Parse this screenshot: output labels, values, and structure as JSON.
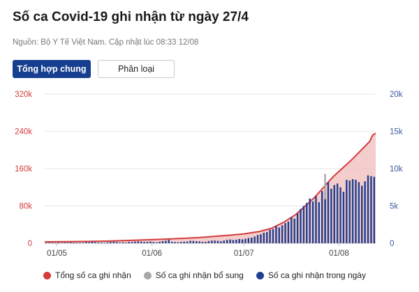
{
  "header": {
    "title": "Số ca Covid-19 ghi nhận từ ngày 27/4",
    "source": "Nguồn: Bộ Y Tế Việt Nam. Cập nhật lúc 08:33 12/08"
  },
  "tabs": [
    {
      "label": "Tổng hợp chung",
      "active": true
    },
    {
      "label": "Phân loại",
      "active": false
    }
  ],
  "colors": {
    "cumulative": "#d43b3b",
    "cumulative_fill": "#f2c4c4",
    "supplementary": "#a8a8a8",
    "daily": "#1f3f8f",
    "left_axis": "#d43b3b",
    "right_axis": "#3b5a9e"
  },
  "chart_data": {
    "type": "bar",
    "x_ticks": [
      "01/05",
      "01/06",
      "01/07",
      "01/08"
    ],
    "x_tick_days": [
      4,
      35,
      65,
      96
    ],
    "days": 108,
    "left_axis": {
      "ticks": [
        "0",
        "80k",
        "160k",
        "240k",
        "320k"
      ],
      "ylim": [
        0,
        320000
      ]
    },
    "right_axis": {
      "ticks": [
        "0",
        "5k",
        "10k",
        "15k",
        "20k"
      ],
      "ylim": [
        0,
        20000
      ]
    },
    "series": [
      {
        "name": "Tổng số ca ghi nhận",
        "kind": "area-line",
        "axis": "left",
        "points": [
          [
            0,
            2900
          ],
          [
            10,
            3500
          ],
          [
            20,
            4400
          ],
          [
            30,
            6500
          ],
          [
            40,
            9000
          ],
          [
            50,
            12000
          ],
          [
            60,
            17000
          ],
          [
            65,
            20000
          ],
          [
            70,
            25000
          ],
          [
            74,
            32000
          ],
          [
            78,
            45000
          ],
          [
            82,
            62000
          ],
          [
            85,
            80000
          ],
          [
            88,
            98000
          ],
          [
            91,
            120000
          ],
          [
            94,
            142000
          ],
          [
            97,
            160000
          ],
          [
            100,
            178000
          ],
          [
            103,
            198000
          ],
          [
            106,
            218000
          ],
          [
            107,
            232000
          ],
          [
            108,
            236000
          ]
        ]
      },
      {
        "name": "Số ca ghi nhận bổ sung",
        "kind": "bar",
        "axis": "right",
        "values": [
          0,
          0,
          0,
          0,
          0,
          0,
          0,
          0,
          0,
          0,
          0,
          0,
          0,
          0,
          0,
          0,
          0,
          0,
          0,
          0,
          0,
          0,
          0,
          0,
          0,
          0,
          0,
          0,
          0,
          0,
          0,
          0,
          0,
          0,
          0,
          0,
          0,
          0,
          0,
          0,
          0,
          0,
          0,
          0,
          0,
          0,
          0,
          0,
          0,
          0,
          0,
          0,
          0,
          0,
          0,
          0,
          0,
          0,
          0,
          0,
          0,
          0,
          0,
          0,
          0,
          0,
          0,
          0,
          0,
          0,
          0,
          0,
          0,
          0,
          0,
          0,
          0,
          0,
          0,
          0,
          0,
          0,
          0,
          0,
          0,
          0,
          0,
          0,
          0,
          0,
          0,
          9300,
          0,
          0,
          0,
          0,
          0,
          0,
          0,
          0,
          0,
          0,
          0,
          0,
          0,
          0,
          0,
          0,
          0
        ]
      },
      {
        "name": "Số ca ghi nhận trong ngày",
        "kind": "bar",
        "axis": "right",
        "values": [
          50,
          80,
          60,
          40,
          90,
          60,
          100,
          80,
          120,
          90,
          60,
          80,
          70,
          150,
          120,
          200,
          150,
          90,
          100,
          60,
          130,
          180,
          210,
          160,
          100,
          140,
          90,
          190,
          170,
          230,
          250,
          200,
          170,
          180,
          230,
          160,
          110,
          200,
          290,
          330,
          450,
          190,
          170,
          120,
          180,
          200,
          220,
          320,
          300,
          260,
          240,
          190,
          180,
          300,
          350,
          360,
          320,
          260,
          360,
          450,
          500,
          430,
          470,
          560,
          520,
          600,
          700,
          750,
          900,
          1100,
          1200,
          1400,
          1500,
          1800,
          1900,
          2300,
          2100,
          2400,
          2700,
          2900,
          3500,
          3300,
          4000,
          4600,
          5000,
          5400,
          6000,
          5600,
          6300,
          5500,
          7000,
          5900,
          8200,
          7300,
          7800,
          8000,
          7500,
          6900,
          8500,
          8400,
          8600,
          8500,
          8200,
          7700,
          8300,
          9100,
          9000,
          8900,
          7400,
          7500,
          3400
        ]
      }
    ]
  },
  "legend": [
    {
      "label": "Tổng số ca ghi nhận",
      "color": "#d43b3b"
    },
    {
      "label": "Số ca ghi nhận bổ sung",
      "color": "#a8a8a8"
    },
    {
      "label": "Số ca ghi nhận trong ngày",
      "color": "#1f3f8f"
    }
  ]
}
